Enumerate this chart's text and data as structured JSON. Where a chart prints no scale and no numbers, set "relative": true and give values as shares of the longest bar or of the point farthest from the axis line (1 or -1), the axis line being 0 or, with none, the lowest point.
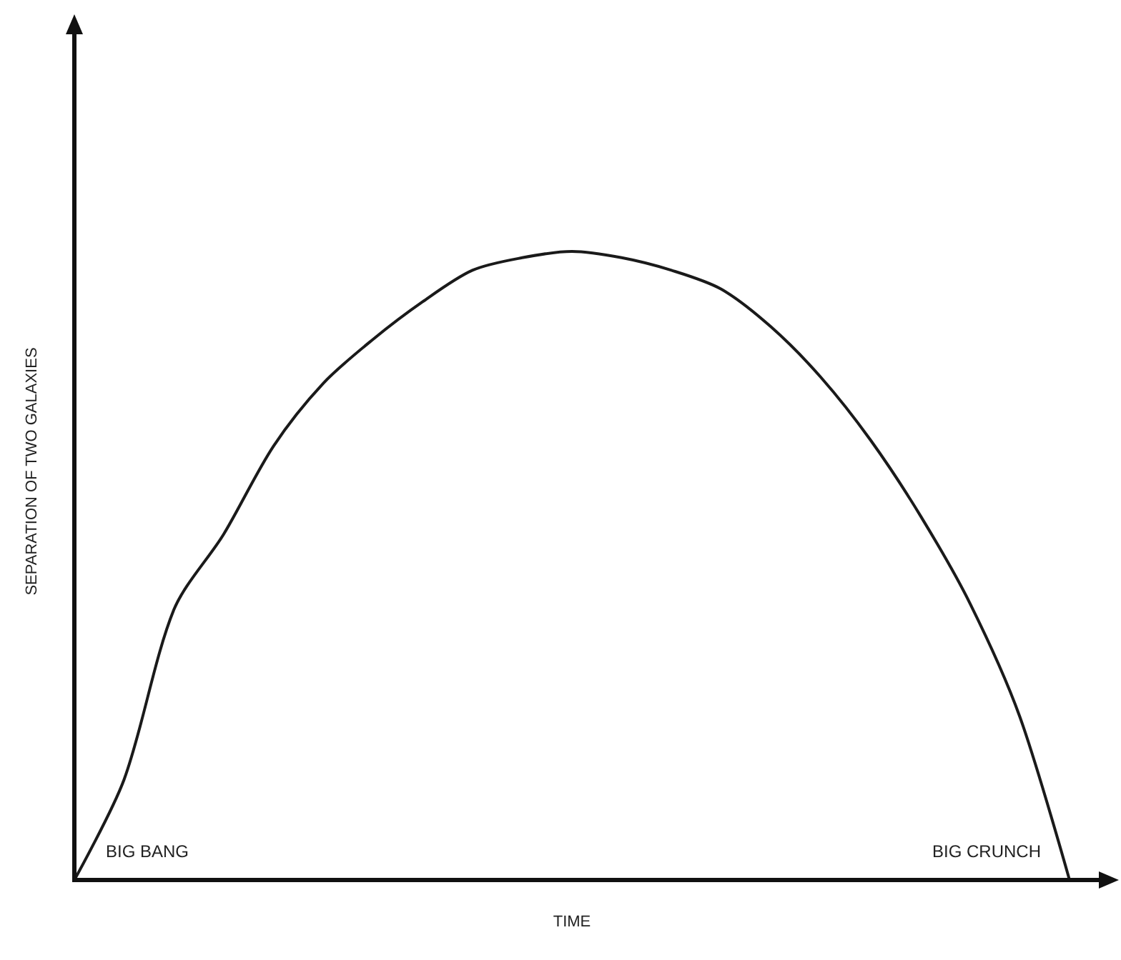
{
  "chart_data": {
    "type": "line",
    "relative": true,
    "xlabel": "TIME",
    "ylabel": "SEPARATION OF TWO GALAXIES",
    "categories": [
      null,
      null,
      null,
      null,
      null,
      null,
      null,
      null,
      null,
      null,
      null,
      null,
      null,
      null,
      null,
      null,
      null,
      null,
      null,
      null,
      null
    ],
    "series": [
      {
        "color": "#1a1a1a",
        "values": [
          0,
          0.16,
          0.43,
          0.55,
          0.69,
          0.79,
          0.86,
          0.92,
          0.97,
          0.99,
          1.0,
          0.99,
          0.97,
          0.94,
          0.88,
          0.8,
          0.7,
          0.58,
          0.44,
          0.26,
          0
        ]
      }
    ],
    "annotations": [
      "BIG BANG",
      "BIG CRUNCH"
    ],
    "marker": "none",
    "line_style": "solid",
    "grid": false
  }
}
